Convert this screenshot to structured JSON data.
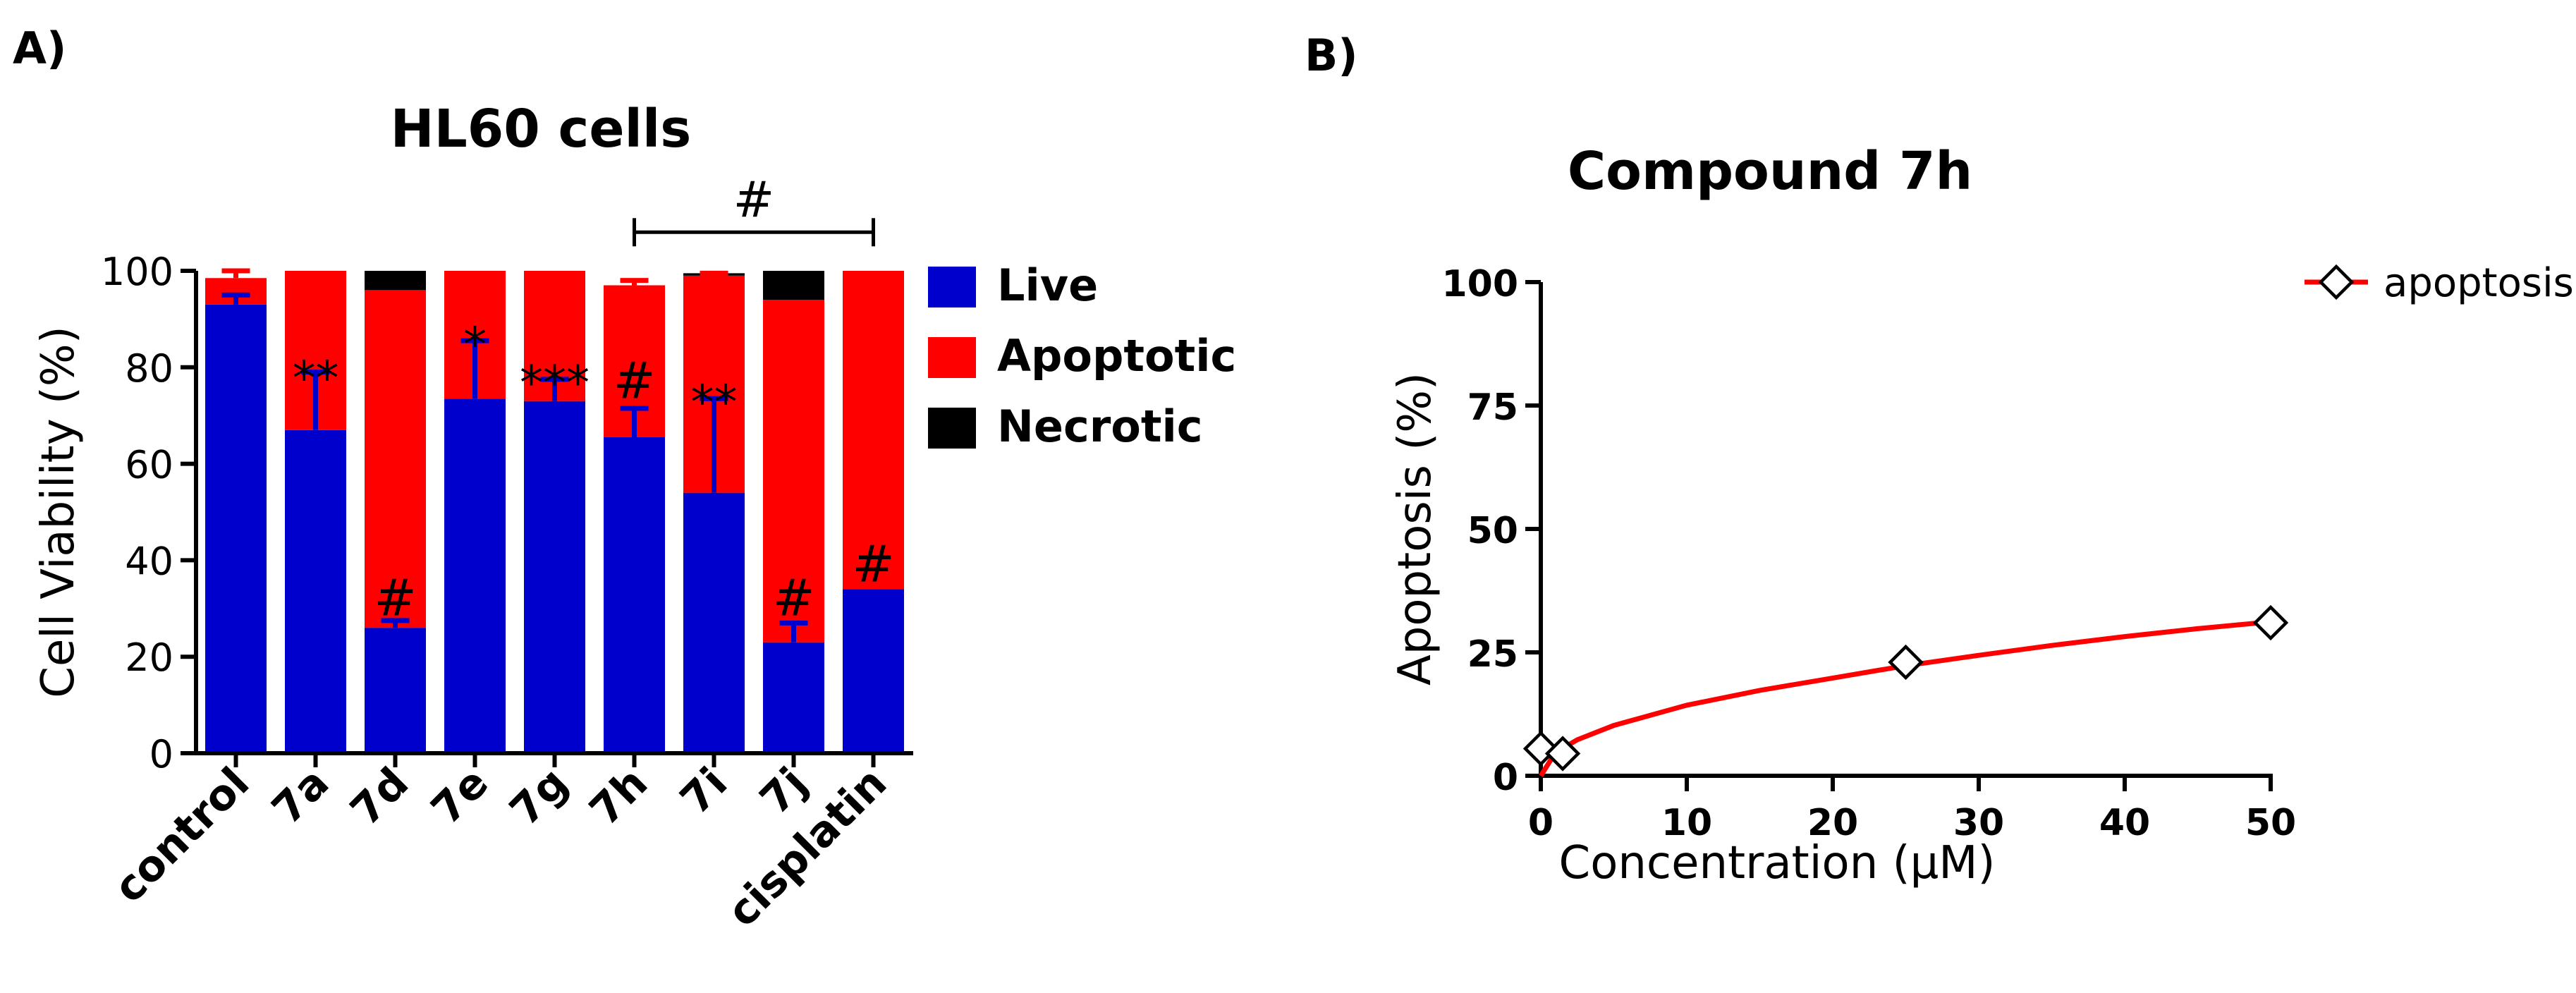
{
  "panel_labels": {
    "a": "A)",
    "b": "B)"
  },
  "colors": {
    "live": "#0000cc",
    "apoptotic": "#ff0000",
    "necrotic": "#000000",
    "curve": "#ff0000",
    "text": "#000000"
  },
  "chart_data": [
    {
      "type": "bar",
      "stacked": true,
      "title": "HL60 cells",
      "xlabel": "",
      "ylabel": "Cell Viability (%)",
      "ylim": [
        0,
        100
      ],
      "yticks": [
        0,
        20,
        40,
        60,
        80,
        100
      ],
      "grid": false,
      "legend_position": "right",
      "categories": [
        "control",
        "7a",
        "7d",
        "7e",
        "7g",
        "7h",
        "7i",
        "7j",
        "cisplatin"
      ],
      "series": [
        {
          "name": "Live",
          "color": "#0000cc",
          "values": [
            93,
            67,
            26,
            73.5,
            73,
            65.5,
            54,
            23,
            34
          ],
          "errors": [
            2,
            12,
            1.5,
            12,
            4.5,
            6,
            19.5,
            4,
            0
          ]
        },
        {
          "name": "Apoptotic",
          "color": "#ff0000",
          "values": [
            5.5,
            33,
            70,
            26.5,
            27,
            31.5,
            45,
            71,
            66
          ],
          "errors": [
            1.5,
            0,
            0,
            0,
            0,
            1,
            0.5,
            0,
            0
          ]
        },
        {
          "name": "Necrotic",
          "color": "#000000",
          "values": [
            0,
            0,
            4,
            0,
            0,
            0,
            0.5,
            6,
            0
          ],
          "errors": [
            0,
            0,
            1,
            0,
            0,
            0,
            0,
            3.5,
            0
          ]
        }
      ],
      "annotations": [
        {
          "category": "7a",
          "text": "**",
          "y": 80
        },
        {
          "category": "7d",
          "text": "#",
          "y": 28
        },
        {
          "category": "7e",
          "text": "*",
          "y": 87
        },
        {
          "category": "7g",
          "text": "***",
          "y": 79
        },
        {
          "category": "7h",
          "text": "#",
          "y": 73
        },
        {
          "category": "7i",
          "text": "**",
          "y": 75
        },
        {
          "category": "7j",
          "text": "#",
          "y": 28
        },
        {
          "category": "cisplatin",
          "text": "#",
          "y": 35
        }
      ],
      "bracket": {
        "from": "7h",
        "to": "cisplatin",
        "text": "#",
        "y": 108
      }
    },
    {
      "type": "line",
      "title": "Compound 7h",
      "xlabel": "Concentration (μM)",
      "ylabel": "Apoptosis (%)",
      "xlim": [
        0,
        50
      ],
      "ylim": [
        0,
        100
      ],
      "xticks": [
        0,
        10,
        20,
        30,
        40,
        50
      ],
      "yticks": [
        0,
        25,
        50,
        75,
        100
      ],
      "grid": false,
      "legend_position": "top-right",
      "series": [
        {
          "name": "apoptosis",
          "color": "#ff0000",
          "points": [
            {
              "x": 0,
              "y": 5.5
            },
            {
              "x": 1.5,
              "y": 4.5
            },
            {
              "x": 25,
              "y": 23
            },
            {
              "x": 50,
              "y": 31
            }
          ],
          "fit_curve": [
            {
              "x": 0,
              "y": 0
            },
            {
              "x": 1,
              "y": 4.7
            },
            {
              "x": 2.5,
              "y": 7.3
            },
            {
              "x": 5,
              "y": 10.2
            },
            {
              "x": 10,
              "y": 14.3
            },
            {
              "x": 15,
              "y": 17.3
            },
            {
              "x": 20,
              "y": 19.8
            },
            {
              "x": 25,
              "y": 22.3
            },
            {
              "x": 30,
              "y": 24.4
            },
            {
              "x": 35,
              "y": 26.4
            },
            {
              "x": 40,
              "y": 28.2
            },
            {
              "x": 45,
              "y": 29.8
            },
            {
              "x": 50,
              "y": 31.2
            }
          ]
        }
      ]
    }
  ]
}
